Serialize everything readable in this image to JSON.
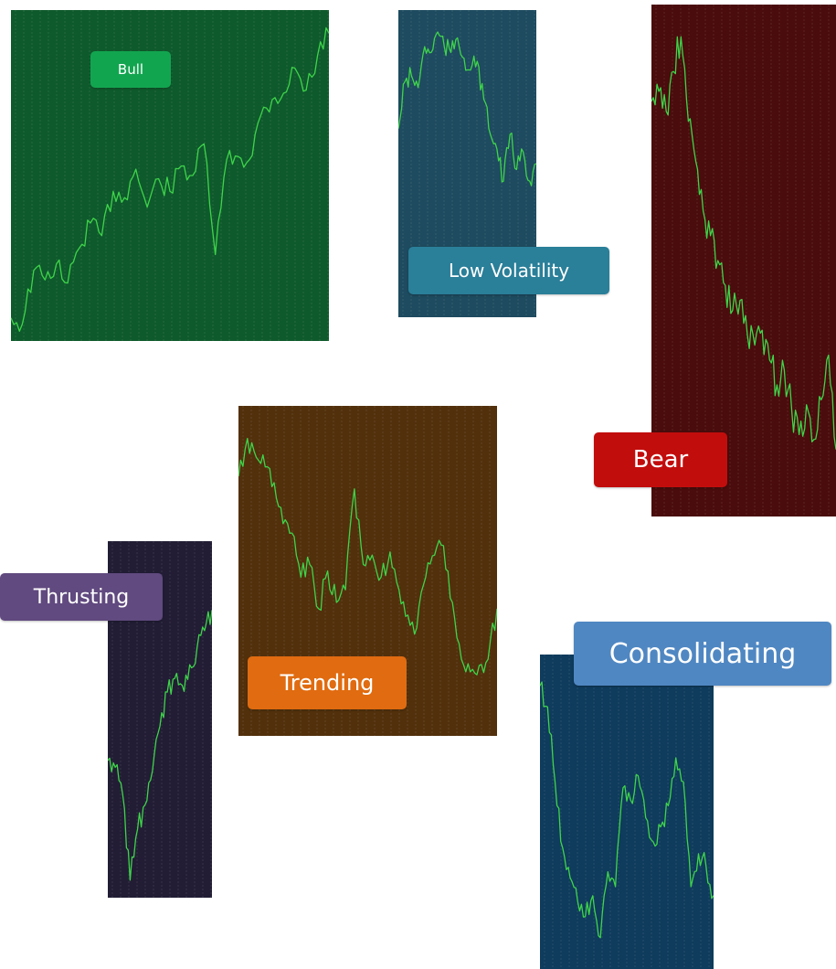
{
  "chart_data": [
    {
      "type": "line",
      "regime": "bull",
      "label": "Bull",
      "background": "#0e5a2c",
      "label_color": "#12a550",
      "line_color": "#3fd44a",
      "grid": true,
      "x": [
        0,
        1,
        2,
        3,
        4,
        5,
        6,
        7,
        8,
        9,
        10,
        11,
        12,
        13,
        14,
        15,
        16,
        17,
        18,
        19,
        20,
        21,
        22,
        23,
        24,
        25,
        26,
        27,
        28
      ],
      "y": [
        0.05,
        0.03,
        0.2,
        0.17,
        0.22,
        0.16,
        0.27,
        0.35,
        0.31,
        0.45,
        0.43,
        0.52,
        0.4,
        0.49,
        0.45,
        0.53,
        0.5,
        0.6,
        0.25,
        0.55,
        0.56,
        0.55,
        0.69,
        0.74,
        0.76,
        0.84,
        0.77,
        0.88,
        0.95
      ],
      "ylim": [
        0,
        1
      ]
    },
    {
      "type": "line",
      "regime": "low-volatility",
      "label": "Low Volatility",
      "background": "#1e4b5f",
      "label_color": "#2a7f99",
      "line_color": "#3fd44a",
      "grid": true,
      "x": [
        0,
        1,
        2,
        3,
        4,
        5,
        6,
        7,
        8,
        9,
        10,
        11,
        12,
        13,
        14,
        15,
        16,
        17,
        18,
        19,
        20,
        21
      ],
      "y": [
        0.62,
        0.78,
        0.8,
        0.76,
        0.9,
        0.88,
        0.95,
        0.9,
        0.88,
        0.93,
        0.86,
        0.82,
        0.85,
        0.72,
        0.6,
        0.55,
        0.44,
        0.6,
        0.48,
        0.54,
        0.44,
        0.5
      ],
      "ylim": [
        0,
        1
      ]
    },
    {
      "type": "line",
      "regime": "bear",
      "label": "Bear",
      "background": "#4a0c0c",
      "label_color": "#c20d0d",
      "line_color": "#3fd44a",
      "grid": true,
      "x": [
        0,
        1,
        2,
        3,
        4,
        5,
        6,
        7,
        8,
        9,
        10,
        11,
        12,
        13,
        14,
        15,
        16,
        17,
        18,
        19,
        20,
        21,
        22,
        23,
        24,
        25
      ],
      "y": [
        0.82,
        0.84,
        0.8,
        0.88,
        0.95,
        0.78,
        0.7,
        0.6,
        0.55,
        0.5,
        0.45,
        0.4,
        0.42,
        0.35,
        0.33,
        0.36,
        0.3,
        0.25,
        0.28,
        0.2,
        0.15,
        0.21,
        0.14,
        0.22,
        0.31,
        0.12
      ],
      "ylim": [
        0,
        1
      ]
    },
    {
      "type": "line",
      "regime": "thrusting",
      "label": "Thrusting",
      "background": "#221d35",
      "label_color": "#614a7f",
      "line_color": "#3fd44a",
      "grid": true,
      "x": [
        0,
        1,
        2,
        3,
        4,
        5,
        6,
        7,
        8,
        9,
        10,
        11,
        12,
        13,
        14
      ],
      "y": [
        0.38,
        0.36,
        0.28,
        0.03,
        0.18,
        0.25,
        0.35,
        0.48,
        0.58,
        0.62,
        0.6,
        0.66,
        0.71,
        0.76,
        0.82
      ],
      "ylim": [
        0,
        1
      ]
    },
    {
      "type": "line",
      "regime": "trending",
      "label": "Trending",
      "background": "#52300c",
      "label_color": "#e06b10",
      "line_color": "#3fd44a",
      "grid": true,
      "x": [
        0,
        1,
        2,
        3,
        4,
        5,
        6,
        7,
        8,
        9,
        10,
        11,
        12,
        13,
        14,
        15,
        16,
        17,
        18,
        19,
        20,
        21,
        22,
        23,
        24,
        25,
        26,
        27,
        28,
        29
      ],
      "y": [
        0.8,
        0.92,
        0.86,
        0.83,
        0.78,
        0.65,
        0.62,
        0.48,
        0.52,
        0.38,
        0.5,
        0.4,
        0.44,
        0.76,
        0.52,
        0.55,
        0.48,
        0.56,
        0.44,
        0.36,
        0.32,
        0.48,
        0.55,
        0.58,
        0.4,
        0.22,
        0.18,
        0.2,
        0.22,
        0.38
      ],
      "ylim": [
        0,
        1
      ]
    },
    {
      "type": "line",
      "regime": "consolidating",
      "label": "Consolidating",
      "background": "#0f3b5c",
      "label_color": "#4f87c2",
      "line_color": "#3fd44a",
      "grid": true,
      "x": [
        0,
        1,
        2,
        3,
        4,
        5,
        6,
        7,
        8,
        9,
        10,
        11,
        12,
        13,
        14,
        15,
        16,
        17,
        18,
        19,
        20,
        21,
        22,
        23
      ],
      "y": [
        0.92,
        0.85,
        0.6,
        0.38,
        0.28,
        0.2,
        0.15,
        0.22,
        0.08,
        0.3,
        0.25,
        0.58,
        0.54,
        0.62,
        0.48,
        0.4,
        0.45,
        0.52,
        0.68,
        0.6,
        0.25,
        0.36,
        0.32,
        0.22
      ],
      "ylim": [
        0,
        1
      ]
    }
  ]
}
